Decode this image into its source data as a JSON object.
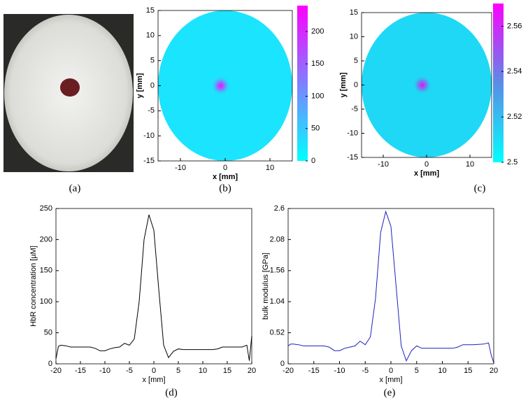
{
  "photo": {
    "caption": "(a)"
  },
  "chart_data": [
    {
      "type": "disk",
      "caption": "(b)",
      "xlabel": "x [mm]",
      "ylabel": "y [mm]",
      "xlim": [
        -15,
        15
      ],
      "ylim": [
        -15,
        15
      ],
      "xticks": [
        -10,
        0,
        10
      ],
      "yticks": [
        -15,
        -10,
        -5,
        0,
        5,
        10,
        15
      ],
      "radius": 15,
      "background_value": 25,
      "peak_value": 240,
      "peak_x": -1,
      "peak_y": 0,
      "clim": [
        0,
        240
      ],
      "cticks": [
        0,
        50,
        100,
        150,
        200
      ],
      "colormap": [
        "#00ffff",
        "#ff00ff"
      ]
    },
    {
      "type": "disk",
      "caption": "(c)",
      "xlabel": "x [mm]",
      "ylabel": "y [mm]",
      "xlim": [
        -15,
        15
      ],
      "ylim": [
        -15,
        15
      ],
      "xticks": [
        -10,
        0,
        10
      ],
      "yticks": [
        -15,
        -10,
        -5,
        0,
        5,
        10,
        15
      ],
      "radius": 15,
      "background_value": 2.512,
      "peak_value": 2.57,
      "peak_x": -1,
      "peak_y": 0,
      "clim": [
        2.5,
        2.57
      ],
      "cticks": [
        2.5,
        2.52,
        2.54,
        2.56
      ],
      "colormap": [
        "#00ffff",
        "#5a8ce6",
        "#ff00ff"
      ]
    },
    {
      "type": "line",
      "caption": "(d)",
      "xlabel": "x [mm]",
      "ylabel": "HbR concentration [µM]",
      "color": "#000000",
      "xlim": [
        -20,
        20
      ],
      "ylim": [
        0,
        250
      ],
      "xticks": [
        -20,
        -15,
        -10,
        -5,
        0,
        5,
        10,
        15,
        20
      ],
      "yticks": [
        0,
        50,
        100,
        150,
        200,
        250
      ],
      "x": [
        -20,
        -19.5,
        -19,
        -18,
        -17,
        -16,
        -15,
        -14,
        -13,
        -12,
        -11,
        -10,
        -9,
        -8,
        -7,
        -6,
        -5,
        -4,
        -3,
        -2,
        -1,
        0,
        1,
        2,
        3,
        4,
        5,
        6,
        8,
        10,
        12,
        13,
        14,
        16,
        18,
        19,
        19.5,
        20
      ],
      "values": [
        8,
        28,
        30,
        29,
        27,
        27,
        27,
        27,
        27,
        25,
        21,
        21,
        24,
        26,
        27,
        33,
        30,
        40,
        100,
        200,
        240,
        215,
        120,
        30,
        10,
        20,
        24,
        23,
        23,
        23,
        23,
        24,
        27,
        27,
        27,
        30,
        5,
        45
      ]
    },
    {
      "type": "line",
      "caption": "(e)",
      "xlabel": "x [mm]",
      "ylabel": "bulk modulus [GPa]",
      "color": "#1f1fbf",
      "xlim": [
        -20,
        20
      ],
      "ylim": [
        0,
        2.6
      ],
      "xticks": [
        -20,
        -15,
        -10,
        -5,
        0,
        5,
        10,
        15,
        20
      ],
      "yticks": [
        0,
        0.52,
        1.04,
        1.56,
        2.08,
        2.6
      ],
      "x": [
        -20,
        -19.5,
        -19,
        -18,
        -17,
        -16,
        -15,
        -14,
        -13,
        -12,
        -11,
        -10,
        -9,
        -8,
        -7,
        -6,
        -5,
        -4,
        -3,
        -2,
        -1,
        0,
        1,
        2,
        3,
        4,
        5,
        6,
        8,
        10,
        12,
        13,
        14,
        16,
        18,
        19,
        19.5,
        20
      ],
      "values": [
        0.3,
        0.33,
        0.33,
        0.32,
        0.3,
        0.3,
        0.3,
        0.3,
        0.3,
        0.28,
        0.22,
        0.22,
        0.26,
        0.28,
        0.3,
        0.38,
        0.32,
        0.45,
        1.1,
        2.2,
        2.55,
        2.3,
        1.3,
        0.3,
        0.05,
        0.22,
        0.3,
        0.26,
        0.26,
        0.26,
        0.26,
        0.28,
        0.32,
        0.32,
        0.33,
        0.35,
        0.15,
        0.02
      ]
    }
  ]
}
